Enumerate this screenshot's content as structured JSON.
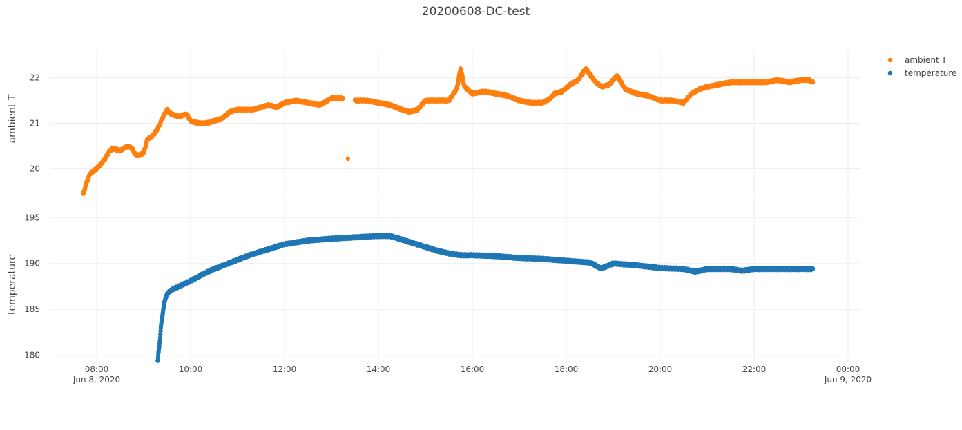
{
  "chart_data": {
    "type": "scatter",
    "title": "20200608-DC-test",
    "x_ticks": [
      {
        "value": "08:00",
        "date": "Jun 8, 2020"
      },
      {
        "value": "10:00",
        "date": ""
      },
      {
        "value": "12:00",
        "date": ""
      },
      {
        "value": "14:00",
        "date": ""
      },
      {
        "value": "16:00",
        "date": ""
      },
      {
        "value": "18:00",
        "date": ""
      },
      {
        "value": "20:00",
        "date": ""
      },
      {
        "value": "22:00",
        "date": ""
      },
      {
        "value": "00:00",
        "date": "Jun 9, 2020"
      }
    ],
    "xlim": [
      "2020-06-08 07:00",
      "2020-06-09 00:15"
    ],
    "grid": true,
    "legend_position": "top-right",
    "subplots": [
      {
        "name": "ambient T",
        "ylabel": "ambient T",
        "ylim": [
          19.4,
          22.6
        ],
        "yticks": [
          20,
          21,
          22
        ],
        "color": "#ff7f0e",
        "points": [
          [
            "07:43",
            19.45
          ],
          [
            "07:47",
            19.7
          ],
          [
            "07:52",
            19.9
          ],
          [
            "08:00",
            20.0
          ],
          [
            "08:10",
            20.2
          ],
          [
            "08:15",
            20.35
          ],
          [
            "08:20",
            20.45
          ],
          [
            "08:30",
            20.4
          ],
          [
            "08:40",
            20.5
          ],
          [
            "08:45",
            20.45
          ],
          [
            "08:50",
            20.3
          ],
          [
            "08:55",
            20.3
          ],
          [
            "09:00",
            20.35
          ],
          [
            "09:05",
            20.65
          ],
          [
            "09:10",
            20.7
          ],
          [
            "09:15",
            20.8
          ],
          [
            "09:20",
            20.95
          ],
          [
            "09:25",
            21.15
          ],
          [
            "09:30",
            21.3
          ],
          [
            "09:35",
            21.2
          ],
          [
            "09:45",
            21.15
          ],
          [
            "09:55",
            21.2
          ],
          [
            "10:00",
            21.05
          ],
          [
            "10:10",
            21.0
          ],
          [
            "10:20",
            21.0
          ],
          [
            "10:30",
            21.05
          ],
          [
            "10:40",
            21.1
          ],
          [
            "10:50",
            21.25
          ],
          [
            "11:00",
            21.3
          ],
          [
            "11:10",
            21.3
          ],
          [
            "11:20",
            21.3
          ],
          [
            "11:30",
            21.35
          ],
          [
            "11:40",
            21.4
          ],
          [
            "11:50",
            21.35
          ],
          [
            "12:00",
            21.45
          ],
          [
            "12:15",
            21.5
          ],
          [
            "12:30",
            21.45
          ],
          [
            "12:45",
            21.4
          ],
          [
            "13:00",
            21.55
          ],
          [
            "13:15",
            21.55
          ],
          [
            "13:21",
            20.22
          ],
          [
            "13:30",
            21.5
          ],
          [
            "13:45",
            21.5
          ],
          [
            "14:00",
            21.45
          ],
          [
            "14:15",
            21.4
          ],
          [
            "14:30",
            21.3
          ],
          [
            "14:40",
            21.25
          ],
          [
            "14:50",
            21.3
          ],
          [
            "15:00",
            21.5
          ],
          [
            "15:15",
            21.5
          ],
          [
            "15:30",
            21.5
          ],
          [
            "15:40",
            21.75
          ],
          [
            "15:45",
            22.2
          ],
          [
            "15:50",
            21.8
          ],
          [
            "16:00",
            21.65
          ],
          [
            "16:15",
            21.7
          ],
          [
            "16:30",
            21.65
          ],
          [
            "16:45",
            21.6
          ],
          [
            "17:00",
            21.5
          ],
          [
            "17:15",
            21.45
          ],
          [
            "17:30",
            21.45
          ],
          [
            "17:40",
            21.55
          ],
          [
            "17:45",
            21.65
          ],
          [
            "17:55",
            21.7
          ],
          [
            "18:05",
            21.85
          ],
          [
            "18:15",
            21.95
          ],
          [
            "18:25",
            22.2
          ],
          [
            "18:35",
            21.95
          ],
          [
            "18:45",
            21.8
          ],
          [
            "18:55",
            21.85
          ],
          [
            "19:05",
            22.05
          ],
          [
            "19:15",
            21.75
          ],
          [
            "19:30",
            21.65
          ],
          [
            "19:45",
            21.6
          ],
          [
            "20:00",
            21.5
          ],
          [
            "20:15",
            21.5
          ],
          [
            "20:30",
            21.45
          ],
          [
            "20:40",
            21.65
          ],
          [
            "20:50",
            21.75
          ],
          [
            "21:00",
            21.8
          ],
          [
            "21:15",
            21.85
          ],
          [
            "21:30",
            21.9
          ],
          [
            "21:45",
            21.9
          ],
          [
            "22:00",
            21.9
          ],
          [
            "22:15",
            21.9
          ],
          [
            "22:30",
            21.95
          ],
          [
            "22:45",
            21.9
          ],
          [
            "23:00",
            21.95
          ],
          [
            "23:10",
            21.95
          ],
          [
            "23:15",
            21.9
          ]
        ]
      },
      {
        "name": "temperature",
        "ylabel": "temperature",
        "ylim": [
          179.3,
          197.2
        ],
        "yticks": [
          180,
          185,
          190,
          195
        ],
        "color": "#1f77b4",
        "points": [
          [
            "09:18",
            179.4
          ],
          [
            "09:20",
            181.0
          ],
          [
            "09:22",
            183.0
          ],
          [
            "09:25",
            185.0
          ],
          [
            "09:28",
            186.3
          ],
          [
            "09:32",
            186.9
          ],
          [
            "09:40",
            187.3
          ],
          [
            "09:50",
            187.7
          ],
          [
            "10:00",
            188.1
          ],
          [
            "10:15",
            188.8
          ],
          [
            "10:30",
            189.4
          ],
          [
            "10:45",
            189.9
          ],
          [
            "11:00",
            190.4
          ],
          [
            "11:15",
            190.9
          ],
          [
            "11:30",
            191.3
          ],
          [
            "11:45",
            191.7
          ],
          [
            "12:00",
            192.1
          ],
          [
            "12:15",
            192.3
          ],
          [
            "12:30",
            192.5
          ],
          [
            "13:00",
            192.7
          ],
          [
            "13:30",
            192.85
          ],
          [
            "14:00",
            193.0
          ],
          [
            "14:15",
            193.0
          ],
          [
            "14:30",
            192.6
          ],
          [
            "14:45",
            192.2
          ],
          [
            "15:00",
            191.8
          ],
          [
            "15:15",
            191.4
          ],
          [
            "15:30",
            191.1
          ],
          [
            "15:45",
            190.9
          ],
          [
            "16:00",
            190.9
          ],
          [
            "16:30",
            190.8
          ],
          [
            "17:00",
            190.6
          ],
          [
            "17:30",
            190.5
          ],
          [
            "18:00",
            190.3
          ],
          [
            "18:30",
            190.1
          ],
          [
            "18:45",
            189.45
          ],
          [
            "19:00",
            190.0
          ],
          [
            "19:30",
            189.8
          ],
          [
            "20:00",
            189.5
          ],
          [
            "20:30",
            189.4
          ],
          [
            "20:45",
            189.1
          ],
          [
            "21:00",
            189.4
          ],
          [
            "21:30",
            189.4
          ],
          [
            "21:45",
            189.2
          ],
          [
            "22:00",
            189.4
          ],
          [
            "22:30",
            189.4
          ],
          [
            "23:00",
            189.4
          ],
          [
            "23:15",
            189.4
          ]
        ]
      }
    ]
  }
}
